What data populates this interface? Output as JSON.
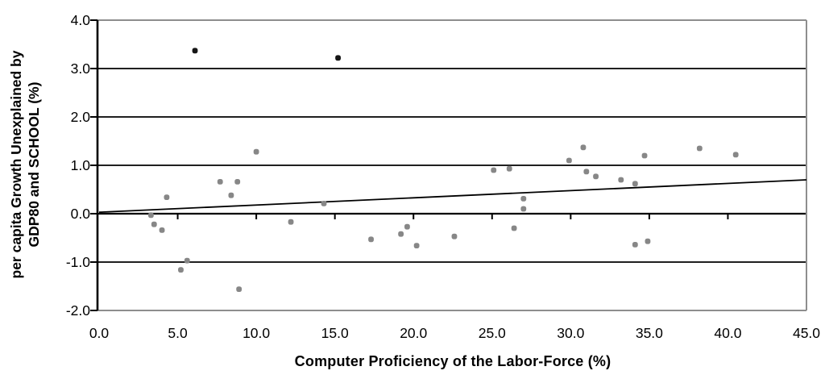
{
  "chart_data": {
    "type": "scatter",
    "title": "",
    "xlabel": "Computer Proficiency of the Labor-Force (%)",
    "ylabel": "per capita Growth Unexplained by GDP80 and SCHOOL (%)",
    "ylabel_lines": [
      "per capita Growth Unexplained by",
      "GDP80 and SCHOOL (%)"
    ],
    "xlim": [
      0.0,
      45.0
    ],
    "ylim": [
      -2.0,
      4.0
    ],
    "x_tick_labels": [
      "0.0",
      "5.0",
      "10.0",
      "15.0",
      "20.0",
      "25.0",
      "30.0",
      "35.0",
      "40.0",
      "45.0"
    ],
    "x_tick_values": [
      0,
      5,
      10,
      15,
      20,
      25,
      30,
      35,
      40,
      45
    ],
    "y_tick_labels": [
      "4.0",
      "3.0",
      "2.0",
      "1.0",
      "0.0",
      "-1.0",
      "-2.0"
    ],
    "y_tick_values": [
      4,
      3,
      2,
      1,
      0,
      -1,
      -2
    ],
    "grid": "horizontal black gridlines at each y tick",
    "legend_position": "none",
    "series": [
      {
        "name": "gray-scatter-points",
        "marker": "rounded-square",
        "color": "#878787",
        "points": [
          [
            3.3,
            -0.03
          ],
          [
            3.5,
            -0.22
          ],
          [
            4.0,
            -0.34
          ],
          [
            4.3,
            0.34
          ],
          [
            5.2,
            -1.16
          ],
          [
            5.6,
            -0.97
          ],
          [
            7.7,
            0.66
          ],
          [
            8.4,
            0.38
          ],
          [
            8.8,
            0.66
          ],
          [
            8.9,
            -1.56
          ],
          [
            10.0,
            1.28
          ],
          [
            12.2,
            -0.17
          ],
          [
            14.3,
            0.21
          ],
          [
            17.3,
            -0.53
          ],
          [
            19.2,
            -0.42
          ],
          [
            19.6,
            -0.27
          ],
          [
            20.2,
            -0.66
          ],
          [
            22.6,
            -0.47
          ],
          [
            25.1,
            0.9
          ],
          [
            26.1,
            0.93
          ],
          [
            26.4,
            -0.3
          ],
          [
            27.0,
            0.31
          ],
          [
            27.0,
            0.1
          ],
          [
            29.9,
            1.1
          ],
          [
            30.8,
            1.37
          ],
          [
            31.0,
            0.87
          ],
          [
            31.6,
            0.77
          ],
          [
            33.2,
            0.7
          ],
          [
            34.1,
            0.62
          ],
          [
            34.1,
            -0.64
          ],
          [
            34.7,
            1.2
          ],
          [
            34.9,
            -0.57
          ],
          [
            38.2,
            1.35
          ],
          [
            40.5,
            1.22
          ]
        ]
      },
      {
        "name": "black-scatter-points",
        "marker": "rounded-square",
        "color": "#161616",
        "points": [
          [
            6.1,
            3.37
          ],
          [
            15.2,
            3.22
          ]
        ]
      }
    ],
    "trendline": {
      "type": "linear",
      "x_start": 0.0,
      "y_start": 0.03,
      "x_end": 45.0,
      "y_end": 0.7,
      "color": "#000000"
    }
  },
  "colors": {
    "background": "#ffffff",
    "gridline": "#000000",
    "plot_border": "#8e8e8e",
    "axis": "#000000",
    "gray_point": "#878787",
    "black_point": "#161616"
  }
}
